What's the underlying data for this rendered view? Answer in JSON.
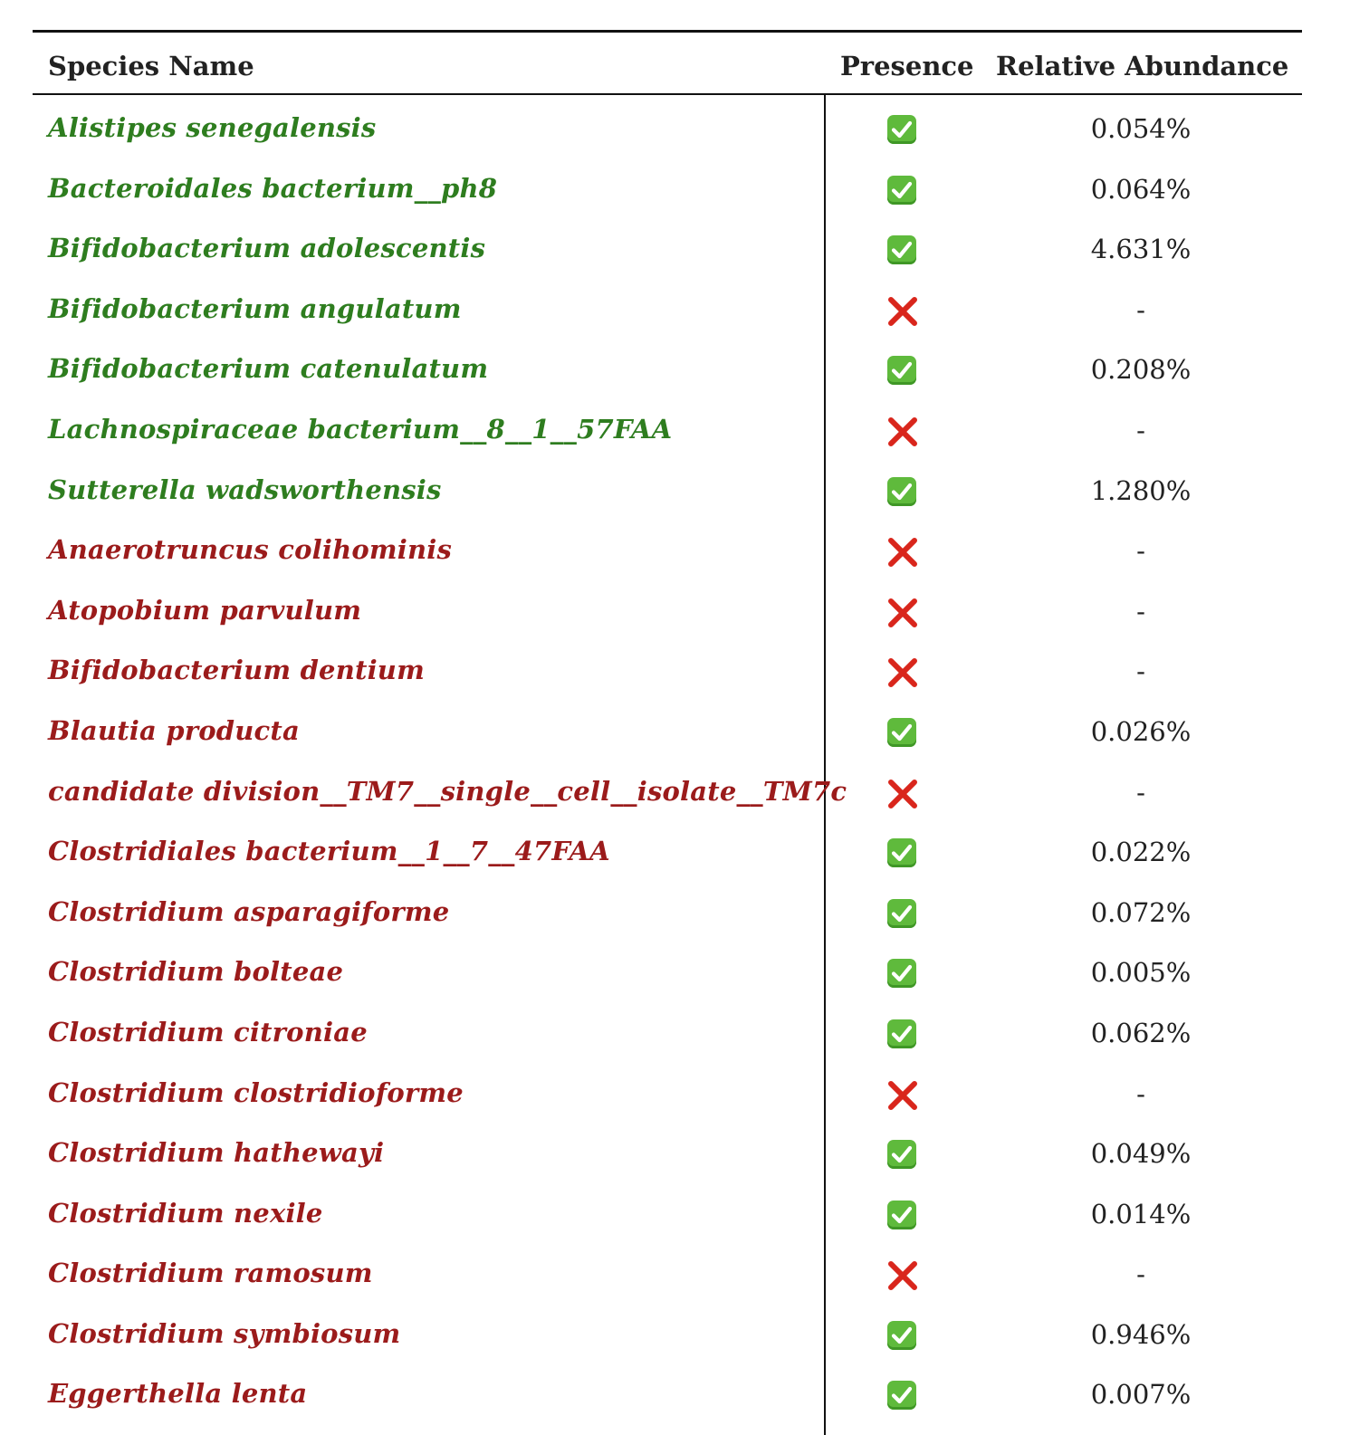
{
  "table": {
    "headers": {
      "species": "Species Name",
      "presence": "Presence",
      "abundance": "Relative Abundance"
    },
    "colors": {
      "beneficial": "#2e7d1f",
      "harmful": "#9b1b1b",
      "present": "#5fba3c",
      "absent": "#d9261c"
    },
    "rows": [
      {
        "name": "Alistipes senegalensis",
        "group": "beneficial",
        "present": true,
        "abundance": "0.054%"
      },
      {
        "name": "Bacteroidales bacterium__ph8",
        "group": "beneficial",
        "present": true,
        "abundance": "0.064%"
      },
      {
        "name": "Bifidobacterium adolescentis",
        "group": "beneficial",
        "present": true,
        "abundance": "4.631%"
      },
      {
        "name": "Bifidobacterium angulatum",
        "group": "beneficial",
        "present": false,
        "abundance": "-"
      },
      {
        "name": "Bifidobacterium catenulatum",
        "group": "beneficial",
        "present": true,
        "abundance": "0.208%"
      },
      {
        "name": "Lachnospiraceae bacterium__8__1__57FAA",
        "group": "beneficial",
        "present": false,
        "abundance": "-"
      },
      {
        "name": "Sutterella wadsworthensis",
        "group": "beneficial",
        "present": true,
        "abundance": "1.280%"
      },
      {
        "name": "Anaerotruncus colihominis",
        "group": "harmful",
        "present": false,
        "abundance": "-"
      },
      {
        "name": "Atopobium parvulum",
        "group": "harmful",
        "present": false,
        "abundance": "-"
      },
      {
        "name": "Bifidobacterium dentium",
        "group": "harmful",
        "present": false,
        "abundance": "-"
      },
      {
        "name": "Blautia producta",
        "group": "harmful",
        "present": true,
        "abundance": "0.026%"
      },
      {
        "name": "candidate division__TM7__single__cell__isolate__TM7c",
        "group": "harmful",
        "present": false,
        "abundance": "-"
      },
      {
        "name": "Clostridiales bacterium__1__7__47FAA",
        "group": "harmful",
        "present": true,
        "abundance": "0.022%"
      },
      {
        "name": "Clostridium asparagiforme",
        "group": "harmful",
        "present": true,
        "abundance": "0.072%"
      },
      {
        "name": "Clostridium bolteae",
        "group": "harmful",
        "present": true,
        "abundance": "0.005%"
      },
      {
        "name": "Clostridium citroniae",
        "group": "harmful",
        "present": true,
        "abundance": "0.062%"
      },
      {
        "name": "Clostridium clostridioforme",
        "group": "harmful",
        "present": false,
        "abundance": "-"
      },
      {
        "name": "Clostridium hathewayi",
        "group": "harmful",
        "present": true,
        "abundance": "0.049%"
      },
      {
        "name": "Clostridium nexile",
        "group": "harmful",
        "present": true,
        "abundance": "0.014%"
      },
      {
        "name": "Clostridium ramosum",
        "group": "harmful",
        "present": false,
        "abundance": "-"
      },
      {
        "name": "Clostridium symbiosum",
        "group": "harmful",
        "present": true,
        "abundance": "0.946%"
      },
      {
        "name": "Eggerthella lenta",
        "group": "harmful",
        "present": true,
        "abundance": "0.007%"
      }
    ]
  }
}
